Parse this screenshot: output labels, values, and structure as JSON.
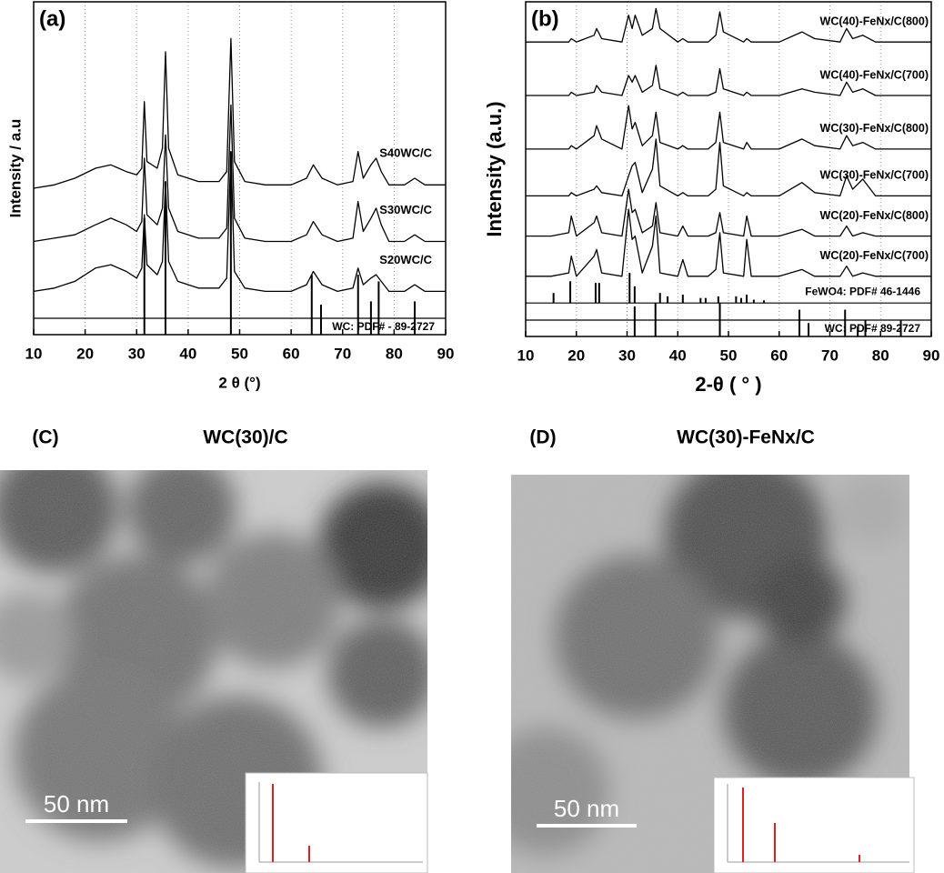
{
  "chart_data": [
    {
      "type": "line",
      "label": "(a)",
      "xlabel": "2 θ (°)",
      "ylabel": "Intensity / a.u",
      "xlim": [
        10,
        90
      ],
      "xticks": [
        10,
        20,
        30,
        40,
        50,
        60,
        70,
        80,
        90
      ],
      "ylim": [
        0,
        100
      ],
      "grid": true,
      "x": [
        10,
        14,
        18,
        22,
        25,
        28,
        30,
        31,
        31.5,
        32,
        34,
        35,
        35.6,
        36.2,
        38,
        42,
        46,
        47.5,
        48.3,
        49,
        51,
        55,
        60,
        63,
        64.3,
        66,
        69,
        72,
        73,
        74,
        75.5,
        76.5,
        77.5,
        79,
        82,
        84,
        86,
        90
      ],
      "series": [
        {
          "name": "S40WC/C",
          "color": "#000000",
          "values": [
            44,
            45,
            47,
            50,
            51,
            49,
            48,
            50,
            70,
            52,
            50,
            56,
            85,
            56,
            48,
            46,
            46,
            49,
            89,
            52,
            46,
            45,
            45,
            47,
            51,
            47,
            45,
            46,
            55,
            47,
            51,
            53,
            49,
            45,
            45,
            47,
            45,
            45
          ]
        },
        {
          "name": "S30WC/C",
          "color": "#000000",
          "values": [
            28,
            29,
            30,
            33,
            35,
            33,
            31,
            34,
            53,
            36,
            33,
            38,
            60,
            38,
            31,
            29,
            29,
            32,
            69,
            35,
            29,
            28,
            28,
            30,
            34,
            30,
            28,
            29,
            40,
            31,
            35,
            38,
            33,
            28,
            28,
            30,
            28,
            28
          ]
        },
        {
          "name": "S20WC/C",
          "color": "#000000",
          "values": [
            13,
            14,
            16,
            20,
            21,
            19,
            17,
            20,
            36,
            21,
            18,
            22,
            46,
            22,
            16,
            14,
            14,
            17,
            55,
            19,
            14,
            13,
            13,
            15,
            19,
            15,
            13,
            14,
            20,
            15,
            17,
            18,
            16,
            13,
            13,
            15,
            13,
            13
          ]
        }
      ],
      "references": [
        {
          "name": "WC: PDF# - 89-2727",
          "color": "#000000",
          "baseline": 0,
          "x": [
            31.5,
            35.6,
            48.3,
            64,
            65.8,
            73,
            75.5,
            77,
            84
          ],
          "values": [
            35,
            46,
            55,
            18,
            9,
            18,
            10,
            16,
            10
          ]
        }
      ]
    },
    {
      "type": "line",
      "label": "(b)",
      "xlabel": "2-θ ( ° )",
      "ylabel": "Intensity (a.u.)",
      "xlim": [
        10,
        90
      ],
      "xticks": [
        10,
        20,
        30,
        40,
        50,
        60,
        70,
        80,
        90
      ],
      "ylim": [
        0,
        100
      ],
      "grid": true,
      "x": [
        10,
        15,
        18.5,
        19,
        20,
        23.5,
        24,
        25,
        29,
        30.3,
        31,
        31.6,
        33,
        35,
        35.7,
        36.5,
        40,
        41,
        42,
        46,
        47.5,
        48.3,
        49,
        53,
        53.6,
        54.5,
        60,
        64.5,
        67,
        72,
        73.3,
        74.5,
        76.5,
        79,
        84,
        90
      ],
      "series": [
        {
          "name": "WC(40)-FeNx/C(800)",
          "color": "#000000",
          "values": [
            88,
            88,
            88,
            89,
            88,
            90,
            92,
            89,
            88,
            96,
            92,
            96,
            90,
            92,
            98,
            92,
            88,
            89,
            88,
            88,
            90,
            97,
            91,
            88,
            89,
            88,
            88,
            91,
            89,
            88,
            92,
            89,
            90,
            88,
            88,
            88
          ]
        },
        {
          "name": "WC(40)-FeNx/C(700)",
          "color": "#000000",
          "values": [
            72,
            72,
            72,
            73,
            72,
            73,
            75,
            73,
            72,
            78,
            76,
            78,
            73,
            75,
            81,
            74,
            72,
            73,
            72,
            72,
            73,
            80,
            74,
            72,
            73,
            72,
            72,
            74,
            73,
            72,
            76,
            73,
            74,
            72,
            72,
            72
          ]
        },
        {
          "name": "WC(30)-FeNx/C(800)",
          "color": "#000000",
          "values": [
            56,
            56,
            56,
            57,
            56,
            60,
            63,
            59,
            56,
            69,
            62,
            64,
            57,
            60,
            67,
            58,
            56,
            57,
            56,
            56,
            58,
            67,
            58,
            56,
            58,
            56,
            56,
            59,
            57,
            56,
            60,
            57,
            58,
            56,
            56,
            56
          ]
        },
        {
          "name": "WC(30)-FeNx/C(700)",
          "color": "#000000",
          "values": [
            42,
            42,
            42,
            43,
            42,
            44,
            45,
            43,
            42,
            48,
            51,
            52,
            43,
            50,
            59,
            45,
            42,
            43,
            42,
            42,
            44,
            58,
            45,
            42,
            43,
            42,
            42,
            46,
            43,
            42,
            48,
            44,
            47,
            42,
            42,
            42
          ]
        },
        {
          "name": "WC(20)-FeNx/C(800)",
          "color": "#000000",
          "values": [
            30,
            30,
            31,
            36,
            30,
            34,
            36,
            31,
            30,
            44,
            37,
            38,
            31,
            33,
            40,
            31,
            30,
            33,
            30,
            30,
            31,
            37,
            31,
            30,
            36,
            30,
            30,
            32,
            30,
            30,
            33,
            30,
            31,
            30,
            30,
            30
          ]
        },
        {
          "name": "WC(20)-FeNx/C(700)",
          "color": "#000000",
          "values": [
            18,
            18,
            19,
            24,
            18,
            24,
            26,
            19,
            18,
            38,
            29,
            30,
            19,
            27,
            36,
            19,
            18,
            23,
            18,
            18,
            20,
            31,
            19,
            18,
            29,
            18,
            18,
            20,
            18,
            18,
            21,
            18,
            19,
            18,
            18,
            18
          ]
        }
      ],
      "references": [
        {
          "name": "FeWO4: PDF# 46-1446",
          "color": "#000000",
          "baseline": 10,
          "x": [
            15.5,
            18.8,
            23.8,
            24.5,
            30.5,
            31.5,
            36.5,
            38,
            41,
            44.5,
            45.5,
            48,
            51.5,
            52.5,
            53.6,
            55,
            57
          ],
          "values": [
            13,
            16.5,
            16,
            16,
            19,
            15,
            13,
            12,
            12.5,
            11.5,
            11.5,
            12,
            12,
            11.5,
            12.5,
            11,
            10.8
          ]
        },
        {
          "name": "WC: PDF# 89-2727",
          "color": "#000000",
          "baseline": 0,
          "x": [
            31.5,
            35.6,
            48.3,
            64,
            65.8,
            73,
            75.5,
            77,
            84
          ],
          "values": [
            9,
            10,
            10,
            8,
            4,
            8,
            3,
            5,
            5
          ]
        }
      ]
    }
  ],
  "images": [
    {
      "label": "(C)",
      "title": "WC(30)/C",
      "scale_bar": "50 nm"
    },
    {
      "label": "(D)",
      "title": "WC(30)-FeNx/C",
      "scale_bar": "50 nm"
    }
  ]
}
